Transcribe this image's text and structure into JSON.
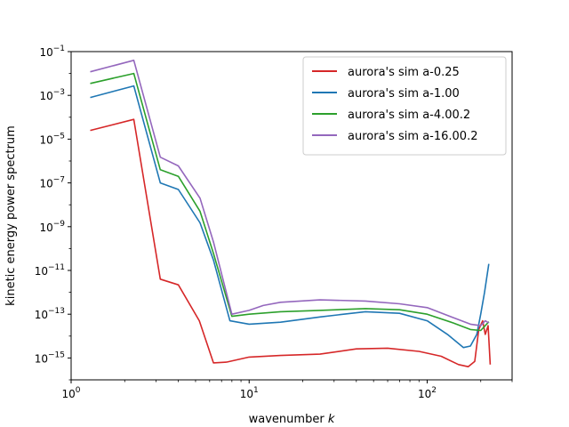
{
  "chart_data": {
    "type": "line",
    "title": "",
    "xlabel": "wavenumber",
    "xlabel_var": "k",
    "ylabel": "kinetic energy power spectrum",
    "xscale": "log",
    "yscale": "log",
    "xlim": [
      1,
      300
    ],
    "ylim": [
      1e-16,
      0.1
    ],
    "x_ticks": [
      {
        "value": 1,
        "base": "10",
        "exp": "0"
      },
      {
        "value": 10,
        "base": "10",
        "exp": "1"
      },
      {
        "value": 100,
        "base": "10",
        "exp": "2"
      }
    ],
    "y_ticks": [
      {
        "value": 0.1,
        "base": "10",
        "exp": "−1"
      },
      {
        "value": 0.001,
        "base": "10",
        "exp": "−3"
      },
      {
        "value": 1e-05,
        "base": "10",
        "exp": "−5"
      },
      {
        "value": 1e-07,
        "base": "10",
        "exp": "−7"
      },
      {
        "value": 1e-09,
        "base": "10",
        "exp": "−9"
      },
      {
        "value": 1e-11,
        "base": "10",
        "exp": "−11"
      },
      {
        "value": 1e-13,
        "base": "10",
        "exp": "−13"
      },
      {
        "value": 1e-15,
        "base": "10",
        "exp": "−15"
      }
    ],
    "legend_position": "top-right",
    "series": [
      {
        "name": "aurora's sim a-0.25",
        "color": "#d62728",
        "points": [
          [
            1.28,
            2.5e-05
          ],
          [
            2.25,
            8e-05
          ],
          [
            3.17,
            4e-12
          ],
          [
            4.0,
            2.2e-12
          ],
          [
            5.25,
            5e-14
          ],
          [
            6.3,
            6e-16
          ],
          [
            7.5,
            6.5e-16
          ],
          [
            10,
            1.1e-15
          ],
          [
            15,
            1.3e-15
          ],
          [
            25,
            1.5e-15
          ],
          [
            40,
            2.6e-15
          ],
          [
            60,
            2.8e-15
          ],
          [
            90,
            2e-15
          ],
          [
            120,
            1.2e-15
          ],
          [
            150,
            5e-16
          ],
          [
            170,
            4e-16
          ],
          [
            185,
            7e-16
          ],
          [
            195,
            2e-14
          ],
          [
            205,
            5e-14
          ],
          [
            212,
            1.2e-14
          ],
          [
            220,
            3e-14
          ],
          [
            226,
            5e-16
          ]
        ]
      },
      {
        "name": "aurora's sim a-1.00",
        "color": "#1f77b4",
        "points": [
          [
            1.28,
            0.0008
          ],
          [
            2.25,
            0.0027
          ],
          [
            3.17,
            1e-07
          ],
          [
            4.0,
            5e-08
          ],
          [
            5.3,
            1.5e-09
          ],
          [
            6.3,
            3e-11
          ],
          [
            7.8,
            5e-14
          ],
          [
            10,
            3.5e-14
          ],
          [
            15,
            4.3e-14
          ],
          [
            25,
            7.5e-14
          ],
          [
            45,
            1.3e-13
          ],
          [
            70,
            1.1e-13
          ],
          [
            100,
            5e-14
          ],
          [
            130,
            1.2e-14
          ],
          [
            160,
            3e-15
          ],
          [
            175,
            3.5e-15
          ],
          [
            190,
            1.2e-14
          ],
          [
            200,
            1e-13
          ],
          [
            210,
            1e-12
          ],
          [
            222,
            2e-11
          ]
        ]
      },
      {
        "name": "aurora's sim a-4.00.2",
        "color": "#2ca02c",
        "points": [
          [
            1.28,
            0.0035
          ],
          [
            2.25,
            0.01
          ],
          [
            3.17,
            4e-07
          ],
          [
            4.0,
            2e-07
          ],
          [
            5.3,
            5e-09
          ],
          [
            6.3,
            6e-11
          ],
          [
            8.0,
            8e-14
          ],
          [
            10,
            1e-13
          ],
          [
            15,
            1.3e-13
          ],
          [
            25,
            1.5e-13
          ],
          [
            45,
            1.8e-13
          ],
          [
            70,
            1.6e-13
          ],
          [
            100,
            1e-13
          ],
          [
            140,
            4e-14
          ],
          [
            175,
            2e-14
          ],
          [
            200,
            1.8e-14
          ],
          [
            212,
            3e-14
          ],
          [
            222,
            4.5e-14
          ]
        ]
      },
      {
        "name": "aurora's sim a-16.00.2",
        "color": "#9467bd",
        "points": [
          [
            1.28,
            0.012
          ],
          [
            2.25,
            0.04
          ],
          [
            3.17,
            1.5e-06
          ],
          [
            4.0,
            6e-07
          ],
          [
            5.3,
            2e-08
          ],
          [
            6.3,
            2e-10
          ],
          [
            8.0,
            1e-13
          ],
          [
            10,
            1.5e-13
          ],
          [
            12,
            2.5e-13
          ],
          [
            15,
            3.5e-13
          ],
          [
            25,
            4.5e-13
          ],
          [
            45,
            4e-13
          ],
          [
            70,
            3e-13
          ],
          [
            100,
            2e-13
          ],
          [
            140,
            7e-14
          ],
          [
            175,
            3.5e-14
          ],
          [
            200,
            3e-14
          ],
          [
            212,
            5e-14
          ],
          [
            222,
            4e-14
          ]
        ]
      }
    ]
  }
}
